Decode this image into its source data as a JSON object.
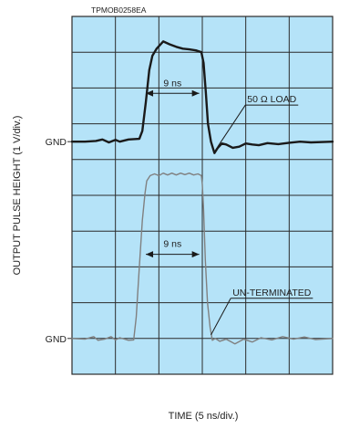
{
  "chart_data": {
    "type": "line",
    "figure_code": "TPMOB0258EA",
    "xlabel": "TIME (5 ns/div.)",
    "ylabel": "OUTPUT PULSE HEIGHT (1 V/div.)",
    "colors": {
      "plot_bg": "#b5e3f8",
      "grid": "#2b2b2b",
      "trace_loaded": "#1a1a1a",
      "trace_unterminated": "#808080",
      "arrow": "#1a1a1a"
    },
    "grid": {
      "x_divisions": 6,
      "y_divisions": 10,
      "visible": true
    },
    "x_range_div": [
      0,
      6
    ],
    "y_range_div": [
      0,
      10
    ],
    "ground_labels": [
      {
        "text": "GND",
        "y_div": 6.5
      },
      {
        "text": "GND",
        "y_div": 1
      }
    ],
    "series": [
      {
        "name": "50 Ω LOAD",
        "baseline_div": 6.5,
        "points": [
          [
            0.0,
            6.5
          ],
          [
            0.3,
            6.5
          ],
          [
            0.55,
            6.52
          ],
          [
            0.7,
            6.56
          ],
          [
            0.85,
            6.48
          ],
          [
            1.0,
            6.55
          ],
          [
            1.1,
            6.5
          ],
          [
            1.3,
            6.56
          ],
          [
            1.55,
            6.58
          ],
          [
            1.62,
            6.8
          ],
          [
            1.7,
            7.6
          ],
          [
            1.78,
            8.5
          ],
          [
            1.85,
            8.9
          ],
          [
            1.95,
            9.1
          ],
          [
            2.1,
            9.3
          ],
          [
            2.25,
            9.22
          ],
          [
            2.4,
            9.15
          ],
          [
            2.55,
            9.1
          ],
          [
            2.7,
            9.08
          ],
          [
            2.85,
            9.05
          ],
          [
            2.98,
            9.0
          ],
          [
            3.03,
            8.7
          ],
          [
            3.08,
            7.9
          ],
          [
            3.13,
            7.0
          ],
          [
            3.2,
            6.5
          ],
          [
            3.28,
            6.18
          ],
          [
            3.35,
            6.32
          ],
          [
            3.45,
            6.45
          ],
          [
            3.55,
            6.42
          ],
          [
            3.7,
            6.33
          ],
          [
            3.85,
            6.36
          ],
          [
            4.0,
            6.45
          ],
          [
            4.15,
            6.42
          ],
          [
            4.3,
            6.4
          ],
          [
            4.5,
            6.46
          ],
          [
            4.75,
            6.43
          ],
          [
            5.0,
            6.47
          ],
          [
            5.25,
            6.5
          ],
          [
            5.5,
            6.48
          ],
          [
            6.0,
            6.5
          ]
        ]
      },
      {
        "name": "UN-TERMINATED",
        "baseline_div": 1,
        "points": [
          [
            0.0,
            1.0
          ],
          [
            0.3,
            0.98
          ],
          [
            0.5,
            1.05
          ],
          [
            0.6,
            0.95
          ],
          [
            0.75,
            0.98
          ],
          [
            0.9,
            1.05
          ],
          [
            1.0,
            0.96
          ],
          [
            1.1,
            1.02
          ],
          [
            1.3,
            0.95
          ],
          [
            1.42,
            0.96
          ],
          [
            1.48,
            1.6
          ],
          [
            1.55,
            3.0
          ],
          [
            1.62,
            4.3
          ],
          [
            1.68,
            5.05
          ],
          [
            1.72,
            5.4
          ],
          [
            1.8,
            5.55
          ],
          [
            1.9,
            5.6
          ],
          [
            2.0,
            5.55
          ],
          [
            2.1,
            5.62
          ],
          [
            2.2,
            5.57
          ],
          [
            2.3,
            5.62
          ],
          [
            2.4,
            5.57
          ],
          [
            2.5,
            5.62
          ],
          [
            2.6,
            5.58
          ],
          [
            2.7,
            5.62
          ],
          [
            2.8,
            5.57
          ],
          [
            2.9,
            5.6
          ],
          [
            2.98,
            5.55
          ],
          [
            3.0,
            5.3
          ],
          [
            3.03,
            4.6
          ],
          [
            3.07,
            3.2
          ],
          [
            3.12,
            2.0
          ],
          [
            3.18,
            1.3
          ],
          [
            3.23,
            0.95
          ],
          [
            3.3,
            1.0
          ],
          [
            3.4,
            0.92
          ],
          [
            3.55,
            0.98
          ],
          [
            3.75,
            0.85
          ],
          [
            3.95,
            0.98
          ],
          [
            4.15,
            0.9
          ],
          [
            4.35,
            1.02
          ],
          [
            4.6,
            0.96
          ],
          [
            4.85,
            1.05
          ],
          [
            5.1,
            0.98
          ],
          [
            5.35,
            1.04
          ],
          [
            5.6,
            0.97
          ],
          [
            6.0,
            1.0
          ]
        ]
      }
    ],
    "annotations": [
      {
        "text": "9 ns",
        "type": "width",
        "x_start_div": 1.7,
        "x_end_div": 2.93,
        "y_div": 7.85
      },
      {
        "text": "9 ns",
        "type": "width",
        "x_start_div": 1.7,
        "x_end_div": 2.93,
        "y_div": 3.35
      },
      {
        "text": "50 Ω LOAD",
        "type": "callout",
        "series": 0,
        "x_div": 4.6,
        "y_div": 7.6,
        "target_x_div": 3.35,
        "target_y_div": 6.35
      },
      {
        "text": "UN-TERMINATED",
        "type": "callout",
        "series": 1,
        "x_div": 4.6,
        "y_div": 2.2,
        "target_x_div": 3.2,
        "target_y_div": 1.1
      }
    ]
  }
}
